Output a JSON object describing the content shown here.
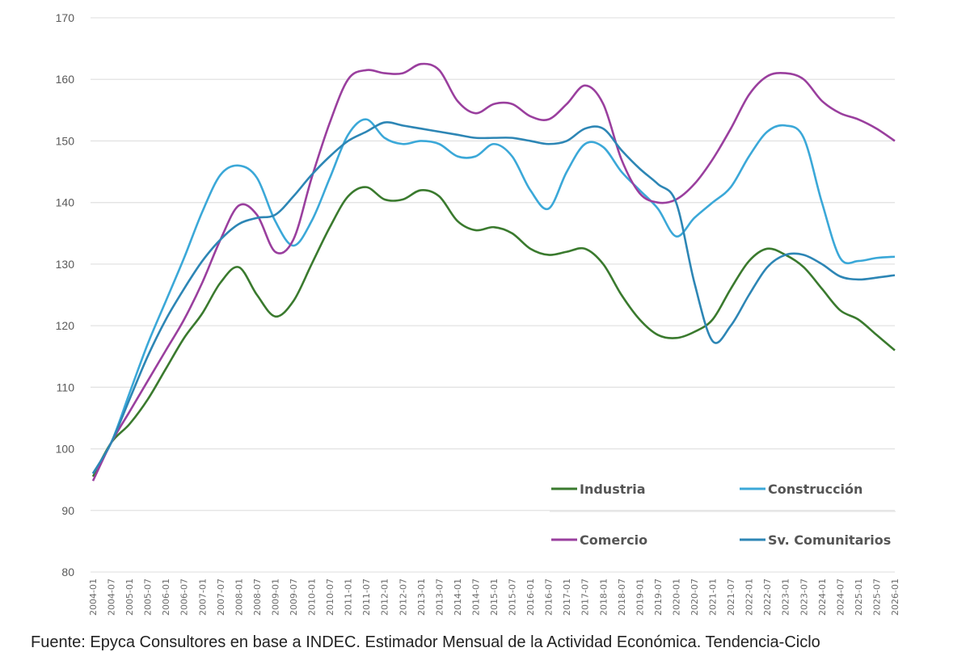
{
  "chart_data": {
    "type": "line",
    "title": "",
    "xlabel": "",
    "ylabel": "",
    "ylim": [
      80,
      170
    ],
    "yticks": [
      80,
      90,
      100,
      110,
      120,
      130,
      140,
      150,
      160,
      170
    ],
    "grid": "horizontal",
    "legend_placement": "bottom-right",
    "x": [
      "2004-01",
      "2004-07",
      "2005-01",
      "2005-07",
      "2006-01",
      "2006-07",
      "2007-01",
      "2007-07",
      "2008-01",
      "2008-07",
      "2009-01",
      "2009-07",
      "2010-01",
      "2010-07",
      "2011-01",
      "2011-07",
      "2012-01",
      "2012-07",
      "2013-01",
      "2013-07",
      "2014-01",
      "2014-07",
      "2015-01",
      "2015-07",
      "2016-01",
      "2016-07",
      "2017-01",
      "2017-07",
      "2018-01",
      "2018-07",
      "2019-01",
      "2019-07",
      "2020-01",
      "2020-07",
      "2021-01",
      "2021-07",
      "2022-01",
      "2022-07",
      "2023-01",
      "2023-07",
      "2024-01",
      "2024-07",
      "2025-01",
      "2025-07",
      "2026-01"
    ],
    "series": [
      {
        "name": "Industria",
        "color": "#3a7a2e",
        "values": [
          95.5,
          101,
          104,
          108,
          113,
          118,
          122,
          127,
          129.5,
          125,
          121.5,
          124,
          130,
          136,
          141,
          142.5,
          140.5,
          140.5,
          142,
          141,
          137,
          135.5,
          136,
          135,
          132.5,
          131.5,
          132,
          132.5,
          130,
          125,
          121,
          118.5,
          118,
          119,
          121,
          126,
          130.5,
          132.5,
          131.5,
          129.5,
          126,
          122.5,
          121,
          118.5,
          116
        ]
      },
      {
        "name": "Construcción",
        "color": "#3ba8d8",
        "values": [
          96,
          101,
          109,
          117,
          124,
          131,
          138.5,
          144.5,
          146,
          144,
          137,
          133,
          137,
          144,
          151,
          153.5,
          150.5,
          149.5,
          150,
          149.5,
          147.5,
          147.5,
          149.5,
          147.5,
          142,
          139,
          145,
          149.5,
          149,
          145,
          142,
          139,
          134.5,
          137.5,
          140,
          142.5,
          147.5,
          151.5,
          152.5,
          150.5,
          140,
          131,
          130.5,
          131,
          131.2
        ]
      },
      {
        "name": "Comercio",
        "color": "#9a3f9e",
        "values": [
          94.8,
          101,
          106,
          111,
          116,
          121,
          127,
          134,
          139.5,
          138,
          132,
          134,
          144,
          153,
          160,
          161.5,
          161,
          161,
          162.5,
          161.5,
          156.5,
          154.5,
          156,
          156,
          154,
          153.5,
          156,
          159,
          156,
          147,
          141.5,
          140,
          140.5,
          143,
          147,
          152,
          157.5,
          160.5,
          161,
          160,
          156.5,
          154.5,
          153.5,
          152,
          150
        ]
      },
      {
        "name": "Sv. Comunitarios",
        "color": "#2d86b5",
        "values": [
          96,
          101,
          108,
          115,
          121,
          126,
          130.5,
          134,
          136.5,
          137.5,
          138,
          141,
          144.5,
          147.5,
          150,
          151.5,
          153,
          152.5,
          152,
          151.5,
          151,
          150.5,
          150.5,
          150.5,
          150,
          149.5,
          150,
          152,
          152,
          148.5,
          145.5,
          143,
          140,
          127,
          117.5,
          120,
          125,
          129.5,
          131.5,
          131.5,
          130,
          128,
          127.5,
          127.8,
          128.2
        ]
      }
    ]
  },
  "footer": "Fuente: Epyca Consultores en base a INDEC. Estimador Mensual de la Actividad Económica. Tendencia-Ciclo"
}
